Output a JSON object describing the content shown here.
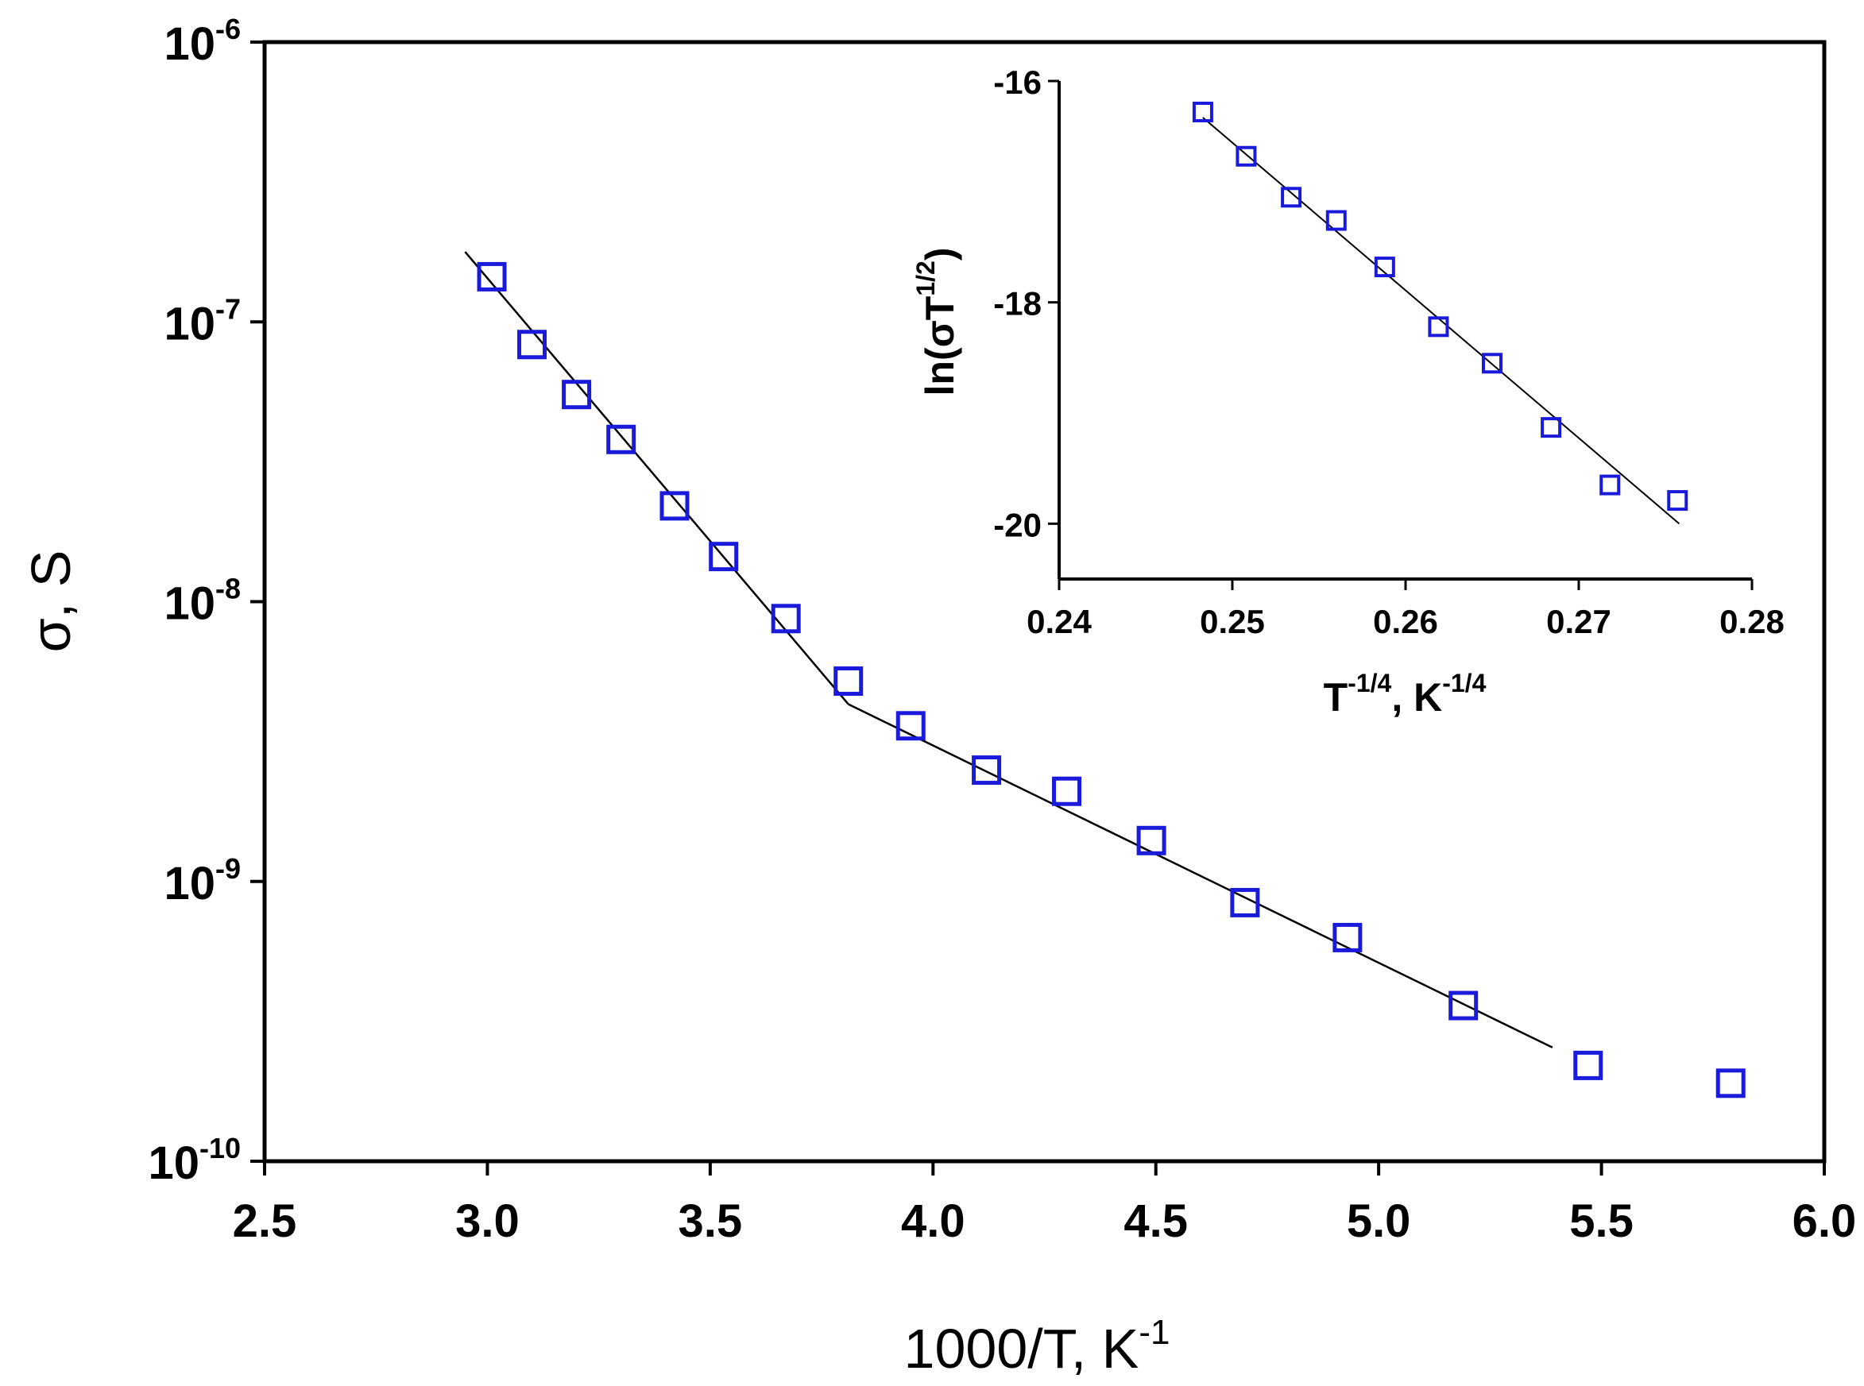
{
  "chart_data": [
    {
      "type": "scatter",
      "name": "main",
      "xlabel": "1000/T, K",
      "xlabel_sup": "-1",
      "ylabel": "σ, S",
      "xlim": [
        2.5,
        6.0
      ],
      "yscale": "log",
      "ylim": [
        1e-10,
        1e-06
      ],
      "x_ticks": [
        2.5,
        3.0,
        3.5,
        4.0,
        4.5,
        5.0,
        5.5,
        6.0
      ],
      "x_tick_labels": [
        "2.5",
        "3.0",
        "3.5",
        "4.0",
        "4.5",
        "5.0",
        "5.5",
        "6.0"
      ],
      "y_ticks": [
        {
          "value": 1e-10,
          "base": "10",
          "exp": "-10"
        },
        {
          "value": 1e-09,
          "base": "10",
          "exp": "-9"
        },
        {
          "value": 1e-08,
          "base": "10",
          "exp": "-8"
        },
        {
          "value": 1e-07,
          "base": "10",
          "exp": "-7"
        },
        {
          "value": 1e-06,
          "base": "10",
          "exp": "-6"
        }
      ],
      "marker": "open-square",
      "marker_color": "#1a1adb",
      "line_color": "#000000",
      "series": [
        {
          "name": "data",
          "x": [
            3.01,
            3.1,
            3.2,
            3.3,
            3.42,
            3.53,
            3.67,
            3.81,
            3.95,
            4.12,
            4.3,
            4.49,
            4.7,
            4.93,
            5.19,
            5.47,
            5.79
          ],
          "y": [
            1.45e-07,
            8.3e-08,
            5.5e-08,
            3.8e-08,
            2.2e-08,
            1.45e-08,
            8.7e-09,
            5.2e-09,
            3.6e-09,
            2.5e-09,
            2.1e-09,
            1.4e-09,
            8.4e-10,
            6.3e-10,
            3.6e-10,
            2.2e-10,
            1.9e-10
          ]
        }
      ],
      "fit_lines": [
        {
          "name": "high-temperature fit",
          "x": [
            2.95,
            3.81
          ],
          "y": [
            1.78e-07,
            4.3e-09
          ]
        },
        {
          "name": "low-temperature fit",
          "x": [
            3.81,
            5.39
          ],
          "y": [
            4.3e-09,
            2.55e-10
          ]
        }
      ]
    },
    {
      "type": "scatter",
      "name": "inset",
      "xlabel": "T",
      "xlabel_sup1": "-1/4",
      "xlabel_mid": ", K",
      "xlabel_sup2": "-1/4",
      "ylabel_pre": "ln(σT",
      "ylabel_sup": "1/2",
      "ylabel_post": ")",
      "xlim": [
        0.24,
        0.28
      ],
      "ylim": [
        -20.5,
        -16
      ],
      "x_ticks": [
        0.24,
        0.25,
        0.26,
        0.27,
        0.28
      ],
      "x_tick_labels": [
        "0.24",
        "0.25",
        "0.26",
        "0.27",
        "0.28"
      ],
      "y_ticks": [
        -16,
        -18,
        -20
      ],
      "y_tick_labels": [
        "-16",
        "-18",
        "-20"
      ],
      "marker": "open-square",
      "marker_color": "#1a1adb",
      "line_color": "#000000",
      "series": [
        {
          "name": "data",
          "x": [
            0.2483,
            0.2508,
            0.2534,
            0.256,
            0.2588,
            0.2619,
            0.265,
            0.2684,
            0.2718,
            0.2757
          ],
          "y": [
            -16.28,
            -16.68,
            -17.05,
            -17.26,
            -17.68,
            -18.22,
            -18.55,
            -19.13,
            -19.65,
            -19.79
          ]
        }
      ],
      "fit_lines": [
        {
          "name": "linear fit",
          "x": [
            0.2483,
            0.2758
          ],
          "y": [
            -16.33,
            -20.0
          ]
        }
      ]
    }
  ]
}
